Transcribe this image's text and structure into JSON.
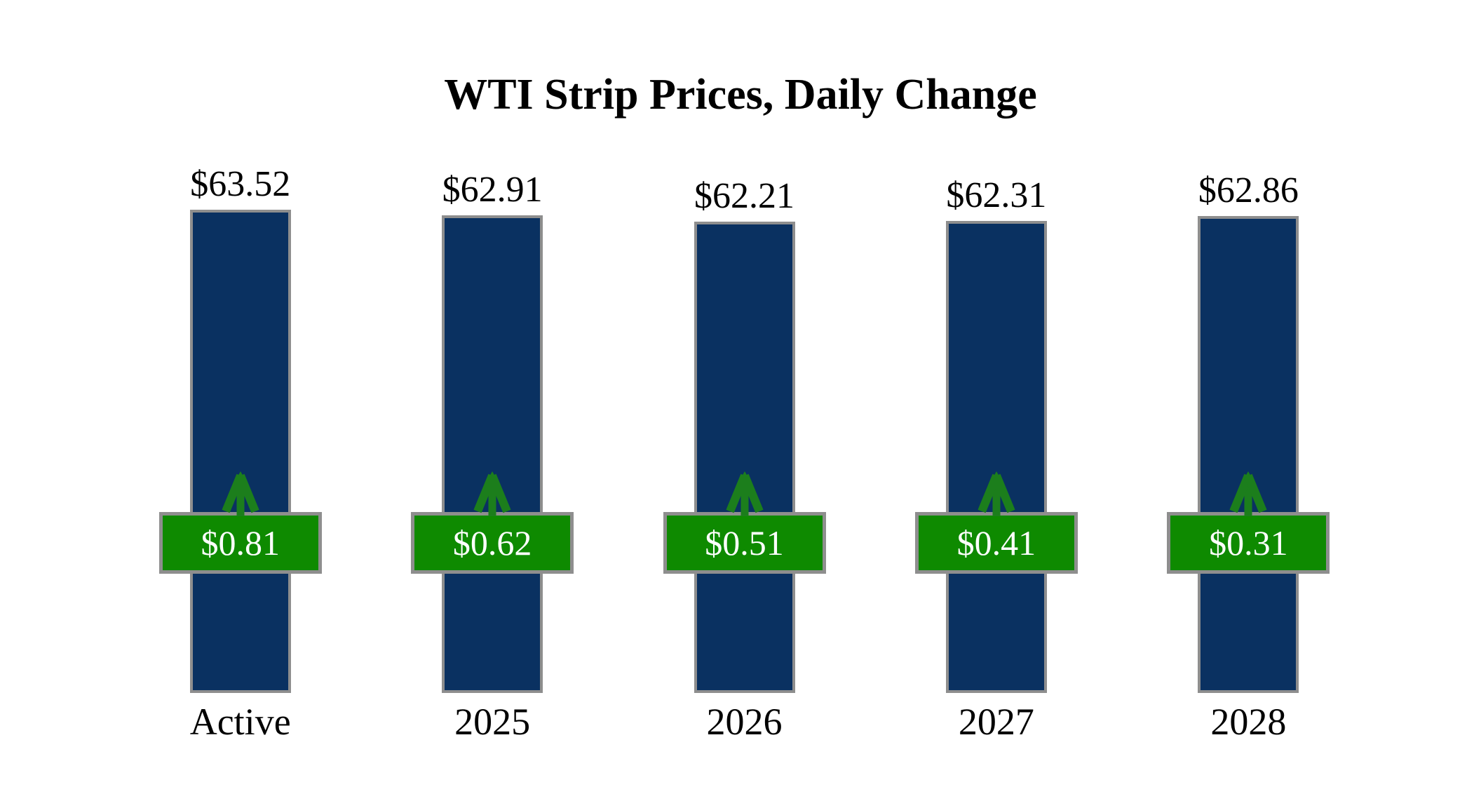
{
  "page": {
    "title": "WTI Strip Prices, Daily Change"
  },
  "colors": {
    "background": "#ffffff",
    "text": "#000000",
    "bar_fill": "#0a3161",
    "bar_border": "#8e8e8e",
    "badge_fill": "#0e8a00",
    "badge_border": "#8e8e8e",
    "badge_text": "#ffffff",
    "arrow": "#1c7e1c"
  },
  "chart_data": {
    "type": "bar",
    "title": "WTI Strip Prices, Daily Change",
    "categories": [
      "Active",
      "2025",
      "2026",
      "2027",
      "2028"
    ],
    "series": [
      {
        "name": "Strip Price",
        "values": [
          63.52,
          62.91,
          62.21,
          62.31,
          62.86
        ],
        "labels": [
          "$63.52",
          "$62.91",
          "$62.21",
          "$62.31",
          "$62.86"
        ]
      },
      {
        "name": "Daily Change",
        "values": [
          0.81,
          0.62,
          0.51,
          0.41,
          0.31
        ],
        "labels": [
          "$0.81",
          "$0.62",
          "$0.51",
          "$0.41",
          "$0.31"
        ],
        "direction": "up"
      }
    ],
    "grid": false,
    "legend_position": "none",
    "axes_visible": false
  }
}
